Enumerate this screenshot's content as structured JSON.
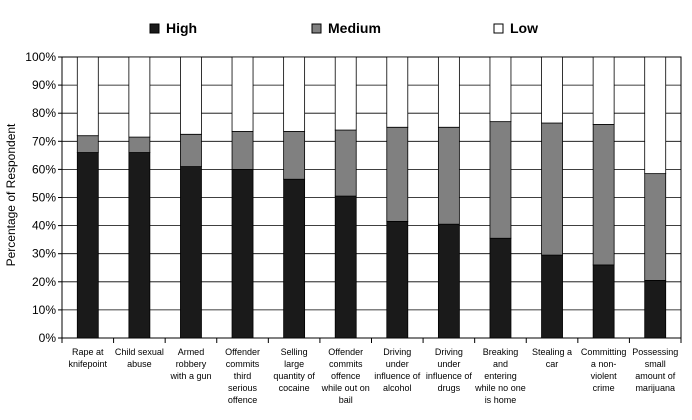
{
  "chart_data": {
    "type": "bar",
    "stacked": true,
    "ylabel": "Percentage of Respondent",
    "xlabel": "",
    "ylim": [
      0,
      100
    ],
    "y_ticks": [
      "0%",
      "10%",
      "20%",
      "30%",
      "40%",
      "50%",
      "60%",
      "70%",
      "80%",
      "90%",
      "100%"
    ],
    "grid": true,
    "legend_position": "top",
    "categories": [
      [
        "Rape at",
        "knifepoint"
      ],
      [
        "Child sexual",
        "abuse"
      ],
      [
        "Armed",
        "robbery",
        "with a gun"
      ],
      [
        "Offender",
        "commits",
        "third",
        "serious",
        "offence"
      ],
      [
        "Selling",
        "large",
        "quantity of",
        "cocaine"
      ],
      [
        "Offender",
        "commits",
        "offence",
        "while out on",
        "bail"
      ],
      [
        "Driving",
        "under",
        "influence of",
        "alcohol"
      ],
      [
        "Driving",
        "under",
        "influence of",
        "drugs"
      ],
      [
        "Breaking",
        "and",
        "entering",
        "while no one",
        "is home"
      ],
      [
        "Stealing a",
        "car"
      ],
      [
        "Committing",
        "a non-",
        "violent",
        "crime"
      ],
      [
        "Possessing",
        "small",
        "amount of",
        "marijuana"
      ]
    ],
    "series": [
      {
        "name": "High",
        "color": "#1a1a1a",
        "values": [
          66,
          66,
          61,
          60,
          56.5,
          50.5,
          41.5,
          40.5,
          35.5,
          29.5,
          26,
          20.5
        ]
      },
      {
        "name": "Medium",
        "color": "#808080",
        "values": [
          6,
          5.5,
          11.5,
          13.5,
          17,
          23.5,
          33.5,
          34.5,
          41.5,
          47,
          50,
          38
        ]
      },
      {
        "name": "Low",
        "color": "#ffffff",
        "values": [
          28,
          28.5,
          27.5,
          26.5,
          26.5,
          26,
          25,
          25,
          23,
          23.5,
          24,
          41.5
        ]
      }
    ]
  }
}
